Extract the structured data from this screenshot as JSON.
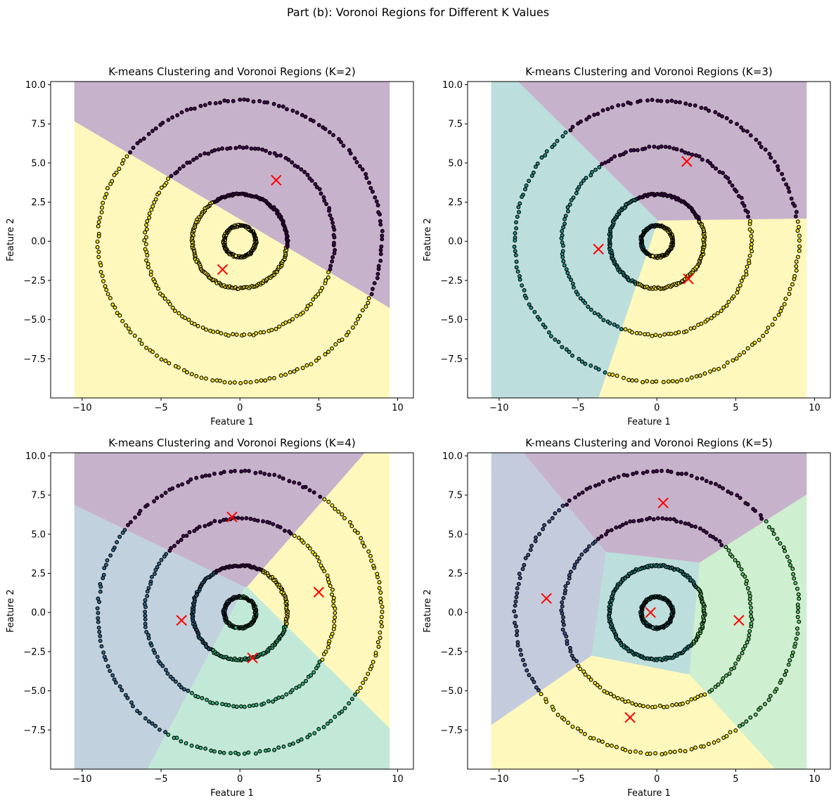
{
  "figure": {
    "suptitle": "Part (b): Voronoi Regions for Different K Values"
  },
  "colors": {
    "k2": [
      "#440154",
      "#fde725"
    ],
    "k3": [
      "#440154",
      "#21918c",
      "#fde725"
    ],
    "k4": [
      "#440154",
      "#31688e",
      "#35b779",
      "#fde725"
    ],
    "k5": [
      "#440154",
      "#3b528b",
      "#21918c",
      "#5ec962",
      "#fde725"
    ],
    "centroid": "#ff0000",
    "region_alpha": 0.3
  },
  "chart_data": [
    {
      "type": "scatter",
      "title": "K-means Clustering and Voronoi Regions (K=2)",
      "xlabel": "Feature 1",
      "ylabel": "Feature 2",
      "xlim": [
        -12,
        11
      ],
      "ylim": [
        -10,
        10.2
      ],
      "region_xrange": [
        -10.5,
        9.5
      ],
      "region_yrange": [
        -10,
        10.2
      ],
      "xticks": [
        -10,
        -5,
        0,
        5,
        10
      ],
      "yticks": [
        -7.5,
        -5.0,
        -2.5,
        0.0,
        2.5,
        5.0,
        7.5,
        10.0
      ],
      "rings": [
        {
          "r": 1,
          "n": 150
        },
        {
          "r": 3,
          "n": 200
        },
        {
          "r": 6,
          "n": 150
        },
        {
          "r": 9,
          "n": 180
        }
      ],
      "centroids": [
        [
          2.3,
          3.9
        ],
        [
          -1.1,
          -1.8
        ]
      ],
      "grid": false
    },
    {
      "type": "scatter",
      "title": "K-means Clustering and Voronoi Regions (K=3)",
      "xlabel": "Feature 1",
      "ylabel": "Feature 2",
      "xlim": [
        -12,
        11
      ],
      "ylim": [
        -10,
        10.2
      ],
      "region_xrange": [
        -10.5,
        9.5
      ],
      "region_yrange": [
        -10,
        10.2
      ],
      "xticks": [
        -10,
        -5,
        0,
        5,
        10
      ],
      "yticks": [
        -7.5,
        -5.0,
        -2.5,
        0.0,
        2.5,
        5.0,
        7.5,
        10.0
      ],
      "rings": [
        {
          "r": 1,
          "n": 150
        },
        {
          "r": 3,
          "n": 200
        },
        {
          "r": 6,
          "n": 150
        },
        {
          "r": 9,
          "n": 180
        }
      ],
      "centroids": [
        [
          1.9,
          5.1
        ],
        [
          -3.7,
          -0.5
        ],
        [
          2.0,
          -2.4
        ]
      ],
      "grid": false
    },
    {
      "type": "scatter",
      "title": "K-means Clustering and Voronoi Regions (K=4)",
      "xlabel": "Feature 1",
      "ylabel": "Feature 2",
      "xlim": [
        -12,
        11
      ],
      "ylim": [
        -10,
        10.2
      ],
      "region_xrange": [
        -10.5,
        9.5
      ],
      "region_yrange": [
        -10,
        10.2
      ],
      "xticks": [
        -10,
        -5,
        0,
        5,
        10
      ],
      "yticks": [
        -7.5,
        -5.0,
        -2.5,
        0.0,
        2.5,
        5.0,
        7.5,
        10.0
      ],
      "rings": [
        {
          "r": 1,
          "n": 150
        },
        {
          "r": 3,
          "n": 200
        },
        {
          "r": 6,
          "n": 150
        },
        {
          "r": 9,
          "n": 180
        }
      ],
      "centroids": [
        [
          -0.5,
          6.1
        ],
        [
          -3.7,
          -0.5
        ],
        [
          0.8,
          -2.9
        ],
        [
          5.0,
          1.3
        ]
      ],
      "grid": false
    },
    {
      "type": "scatter",
      "title": "K-means Clustering and Voronoi Regions (K=5)",
      "xlabel": "Feature 1",
      "ylabel": "Feature 2",
      "xlim": [
        -12,
        11
      ],
      "ylim": [
        -10,
        10.2
      ],
      "region_xrange": [
        -10.5,
        9.5
      ],
      "region_yrange": [
        -10,
        10.2
      ],
      "xticks": [
        -10,
        -5,
        0,
        5,
        10
      ],
      "yticks": [
        -7.5,
        -5.0,
        -2.5,
        0.0,
        2.5,
        5.0,
        7.5,
        10.0
      ],
      "rings": [
        {
          "r": 1,
          "n": 150
        },
        {
          "r": 3,
          "n": 200
        },
        {
          "r": 6,
          "n": 150
        },
        {
          "r": 9,
          "n": 180
        }
      ],
      "centroids": [
        [
          0.4,
          7.0
        ],
        [
          -7.0,
          0.9
        ],
        [
          -0.4,
          0.0
        ],
        [
          5.2,
          -0.5
        ],
        [
          -1.7,
          -6.7
        ]
      ],
      "grid": false
    }
  ]
}
